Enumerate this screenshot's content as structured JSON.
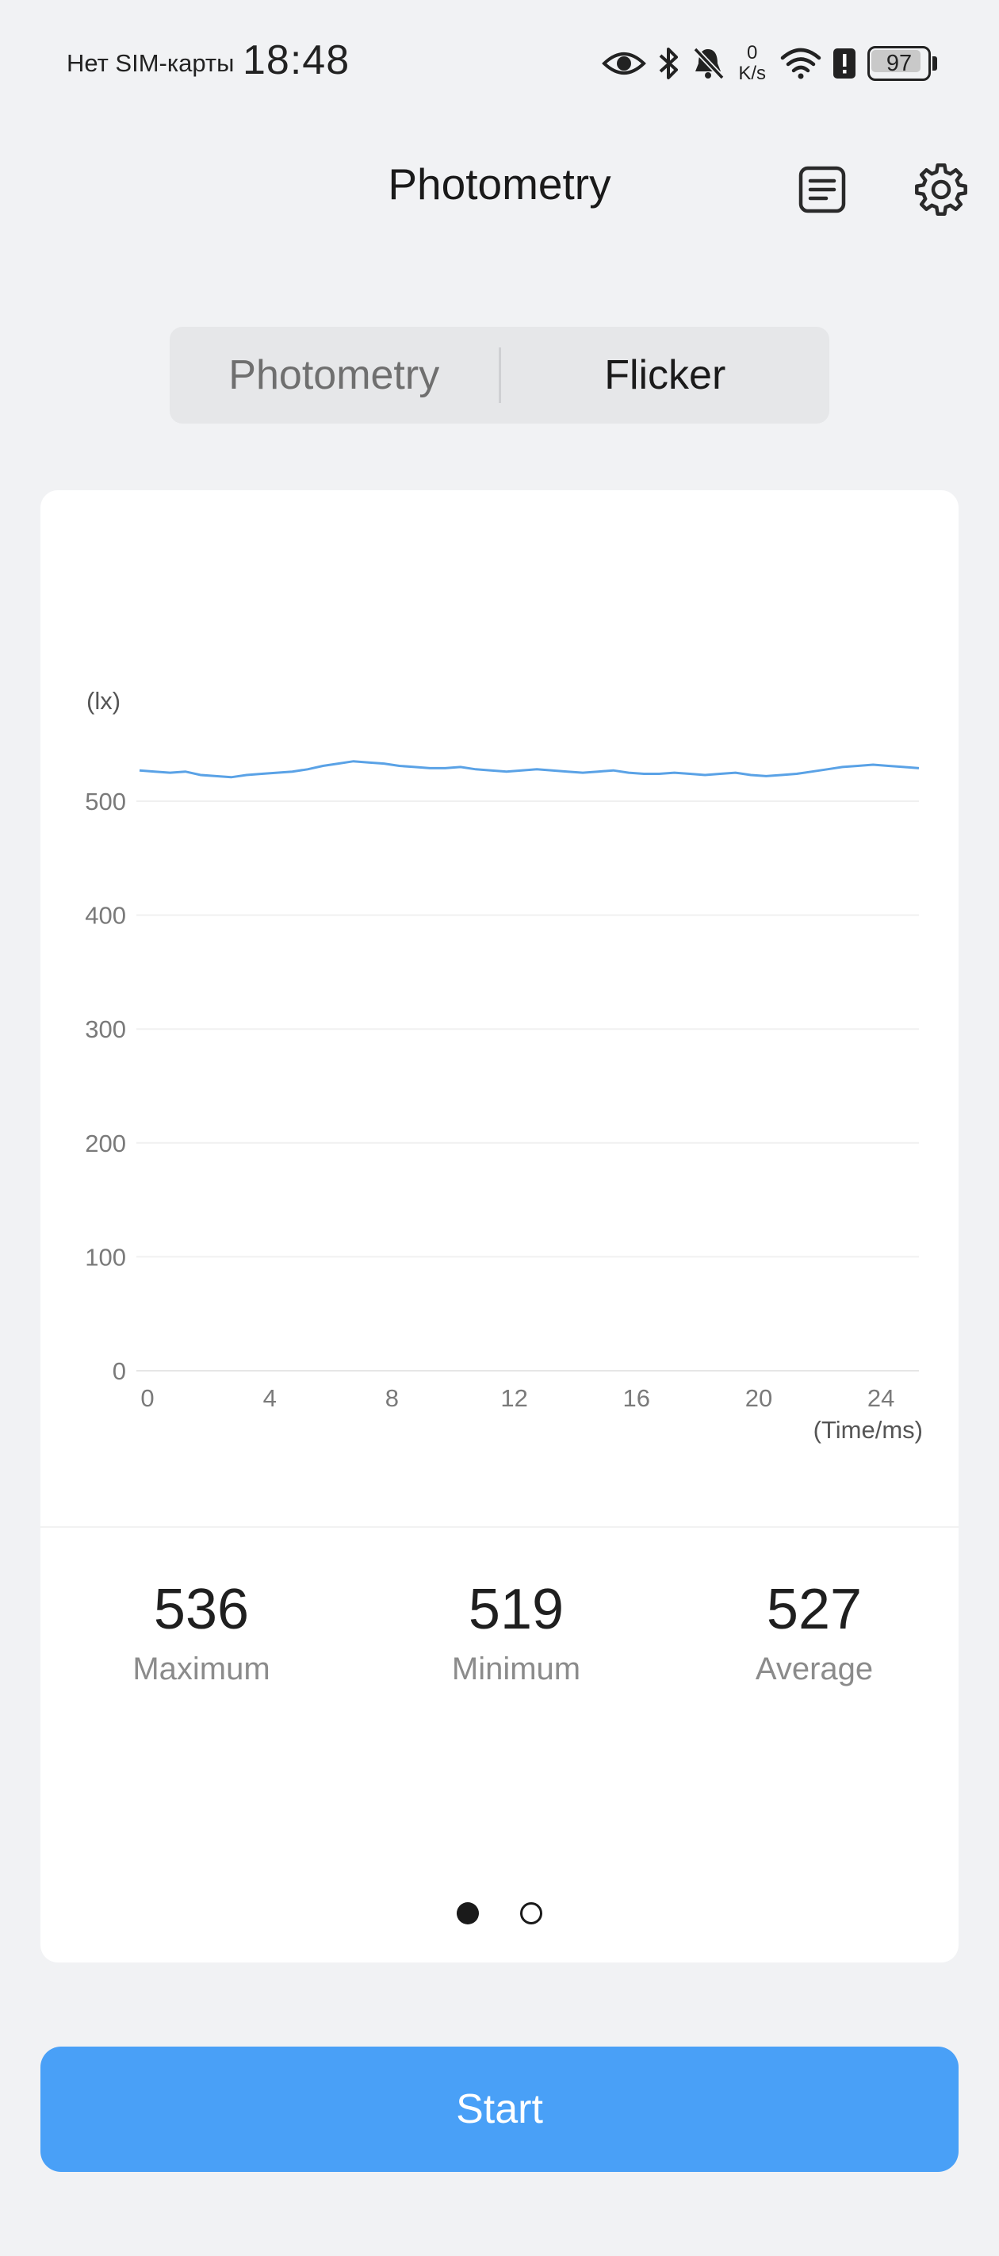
{
  "status_bar": {
    "carrier": "Нет SIM-карты",
    "time": "18:48",
    "net_speed_value": "0",
    "net_speed_unit": "K/s",
    "battery_level": "97",
    "icons": [
      "eye-icon",
      "bluetooth-icon",
      "bell-muted-icon",
      "wifi-icon",
      "alert-icon",
      "battery-icon"
    ]
  },
  "header": {
    "title": "Photometry",
    "report_icon": "report-icon",
    "settings_icon": "gear-icon"
  },
  "segmented": {
    "tabs": [
      {
        "label": "Photometry",
        "active": false
      },
      {
        "label": "Flicker",
        "active": true
      }
    ]
  },
  "chart_data": {
    "type": "line",
    "ylabel": "(lx)",
    "xlabel": "(Time/ms)",
    "xlim": [
      0,
      25.5
    ],
    "ylim": [
      0,
      500
    ],
    "x_ticks": [
      "0",
      "4",
      "8",
      "12",
      "16",
      "20",
      "24"
    ],
    "y_ticks": [
      "0",
      "100",
      "200",
      "300",
      "400",
      "500"
    ],
    "grid": true,
    "color": "#5aa2e6",
    "series": [
      {
        "x": [
          0,
          0.5,
          1,
          1.5,
          2,
          2.5,
          3,
          3.5,
          4,
          4.5,
          5,
          5.5,
          6,
          6.5,
          7,
          7.5,
          8,
          8.5,
          9,
          9.5,
          10,
          10.5,
          11,
          11.5,
          12,
          12.5,
          13,
          13.5,
          14,
          14.5,
          15,
          15.5,
          16,
          16.5,
          17,
          17.5,
          18,
          18.5,
          19,
          19.5,
          20,
          20.5,
          21,
          21.5,
          22,
          22.5,
          23,
          23.5,
          24,
          24.5,
          25,
          25.5
        ],
        "y": [
          527,
          526,
          525,
          526,
          523,
          522,
          521,
          523,
          524,
          525,
          526,
          528,
          531,
          533,
          535,
          534,
          533,
          531,
          530,
          529,
          529,
          530,
          528,
          527,
          526,
          527,
          528,
          527,
          526,
          525,
          526,
          527,
          525,
          524,
          524,
          525,
          524,
          523,
          524,
          525,
          523,
          522,
          523,
          524,
          526,
          528,
          530,
          531,
          532,
          531,
          530,
          529
        ]
      }
    ]
  },
  "stats": [
    {
      "value": "536",
      "label": "Maximum"
    },
    {
      "value": "519",
      "label": "Minimum"
    },
    {
      "value": "527",
      "label": "Average"
    }
  ],
  "pager": {
    "count": 2,
    "active": 0
  },
  "start_button": {
    "label": "Start"
  }
}
